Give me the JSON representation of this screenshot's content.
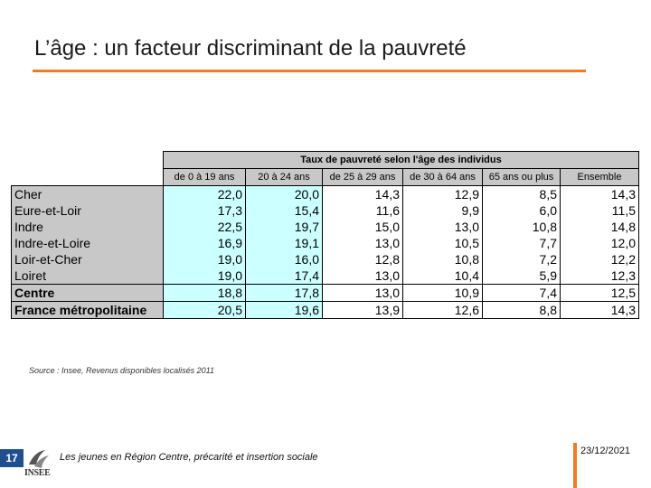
{
  "title": "L’âge : un facteur discriminant de la pauvreté",
  "table": {
    "group_header": "Taux de pauvreté selon l'âge des individus",
    "columns": [
      "de 0 à 19 ans",
      "20 à 24 ans",
      "de 25 à 29 ans",
      "de 30 à 64 ans",
      "65 ans ou plus",
      "Ensemble"
    ],
    "rows": [
      {
        "name": "Cher",
        "values": [
          "22,0",
          "20,0",
          "14,3",
          "12,9",
          "8,5",
          "14,3"
        ]
      },
      {
        "name": "Eure-et-Loir",
        "values": [
          "17,3",
          "15,4",
          "11,6",
          "9,9",
          "6,0",
          "11,5"
        ]
      },
      {
        "name": "Indre",
        "values": [
          "22,5",
          "19,7",
          "15,0",
          "13,0",
          "10,8",
          "14,8"
        ]
      },
      {
        "name": "Indre-et-Loire",
        "values": [
          "16,9",
          "19,1",
          "13,0",
          "10,5",
          "7,7",
          "12,0"
        ]
      },
      {
        "name": "Loir-et-Cher",
        "values": [
          "19,0",
          "16,0",
          "12,8",
          "10,8",
          "7,2",
          "12,2"
        ]
      },
      {
        "name": "Loiret",
        "values": [
          "19,0",
          "17,4",
          "13,0",
          "10,4",
          "5,9",
          "12,3"
        ]
      },
      {
        "name": "Centre",
        "values": [
          "18,8",
          "17,8",
          "13,0",
          "10,9",
          "7,4",
          "12,5"
        ]
      },
      {
        "name": "France métropolitaine",
        "values": [
          "20,5",
          "19,6",
          "13,9",
          "12,6",
          "8,8",
          "14,3"
        ]
      }
    ]
  },
  "source": "Source : Insee, Revenus disponibles localisés 2011",
  "footer": {
    "page_number": "17",
    "logo_text": "INSEE",
    "text": "Les jeunes en Région Centre, précarité et insertion sociale",
    "date": "23/12/2021"
  },
  "colors": {
    "accent_orange": "#f07c1e",
    "header_gray": "#c8c8c8",
    "highlight_cyan": "#ccffff",
    "page_badge_blue": "#1f4f8f"
  }
}
